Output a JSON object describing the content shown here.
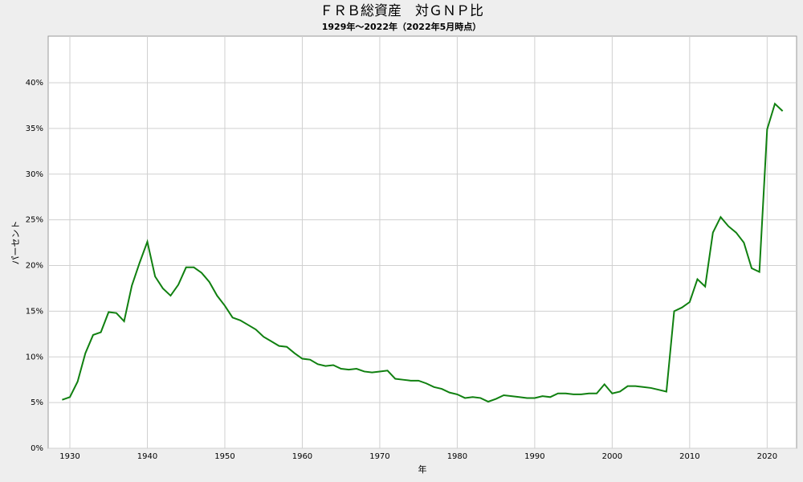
{
  "chart_data": {
    "type": "line",
    "title": "ＦＲＢ総資産　対ＧＮＰ比",
    "subtitle": "1929年～2022年（2022年5月時点）",
    "xlabel": "年",
    "ylabel": "パーセント",
    "x": [
      1929,
      1930,
      1931,
      1932,
      1933,
      1934,
      1935,
      1936,
      1937,
      1938,
      1939,
      1940,
      1941,
      1942,
      1943,
      1944,
      1945,
      1946,
      1947,
      1948,
      1949,
      1950,
      1951,
      1952,
      1953,
      1954,
      1955,
      1956,
      1957,
      1958,
      1959,
      1960,
      1961,
      1962,
      1963,
      1964,
      1965,
      1966,
      1967,
      1968,
      1969,
      1970,
      1971,
      1972,
      1973,
      1974,
      1975,
      1976,
      1977,
      1978,
      1979,
      1980,
      1981,
      1982,
      1983,
      1984,
      1985,
      1986,
      1987,
      1988,
      1989,
      1990,
      1991,
      1992,
      1993,
      1994,
      1995,
      1996,
      1997,
      1998,
      1999,
      2000,
      2001,
      2002,
      2003,
      2004,
      2005,
      2006,
      2007,
      2008,
      2009,
      2010,
      2011,
      2012,
      2013,
      2014,
      2015,
      2016,
      2017,
      2018,
      2019,
      2020,
      2021,
      2022
    ],
    "series": [
      {
        "color": "#108010",
        "values": [
          5.3,
          5.6,
          7.3,
          10.4,
          12.4,
          12.7,
          14.9,
          14.8,
          13.9,
          17.8,
          20.3,
          22.6,
          18.8,
          17.5,
          16.7,
          17.9,
          19.8,
          19.8,
          19.2,
          18.2,
          16.7,
          15.6,
          14.3,
          14.0,
          13.5,
          13.0,
          12.2,
          11.7,
          11.2,
          11.1,
          10.4,
          9.8,
          9.7,
          9.2,
          9.0,
          9.1,
          8.7,
          8.6,
          8.7,
          8.4,
          8.3,
          8.4,
          8.5,
          7.6,
          7.5,
          7.4,
          7.4,
          7.1,
          6.7,
          6.5,
          6.1,
          5.9,
          5.5,
          5.6,
          5.5,
          5.1,
          5.4,
          5.8,
          5.7,
          5.6,
          5.5,
          5.5,
          5.7,
          5.6,
          6.0,
          6.0,
          5.9,
          5.9,
          6.0,
          6.0,
          7.0,
          6.0,
          6.2,
          6.8,
          6.8,
          6.7,
          6.6,
          6.4,
          6.2,
          15.0,
          15.4,
          16.0,
          18.5,
          17.7,
          23.6,
          25.3,
          24.3,
          23.6,
          22.5,
          19.7,
          19.3,
          34.9,
          37.7,
          36.9
        ]
      }
    ],
    "xlim": [
      1927.2,
      2023.8
    ],
    "xticks": [
      1930,
      1940,
      1950,
      1960,
      1970,
      1980,
      1990,
      2000,
      2010,
      2020
    ],
    "ylim": [
      0,
      45.1
    ],
    "yticks": [
      {
        "value": 0,
        "label": "0%"
      },
      {
        "value": 5,
        "label": "5%"
      },
      {
        "value": 10,
        "label": "10%"
      },
      {
        "value": 15,
        "label": "15%"
      },
      {
        "value": 20,
        "label": "20%"
      },
      {
        "value": 25,
        "label": "25%"
      },
      {
        "value": 30,
        "label": "30%"
      },
      {
        "value": 35,
        "label": "35%"
      },
      {
        "value": 40,
        "label": "40%"
      }
    ],
    "grid": true
  }
}
